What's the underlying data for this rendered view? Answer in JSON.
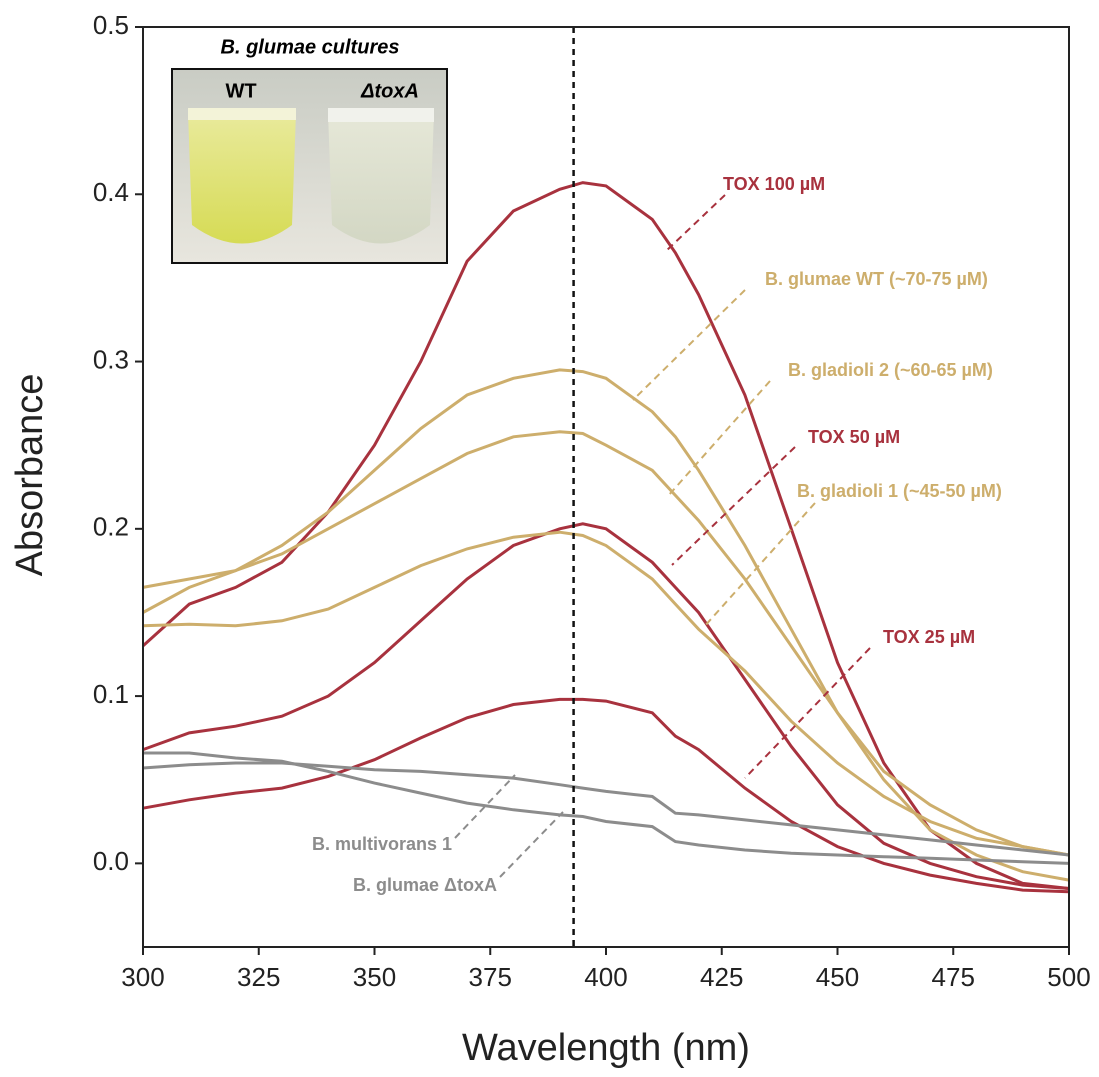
{
  "chart_data": {
    "type": "line",
    "inset": {
      "title": "B. glumae cultures",
      "labels": [
        "WT",
        "ΔtoxA"
      ]
    },
    "xlabel": "Wavelength (nm)",
    "ylabel": "Absorbance",
    "x": [
      300,
      310,
      320,
      330,
      340,
      350,
      360,
      370,
      380,
      390,
      395,
      400,
      410,
      415,
      420,
      430,
      440,
      450,
      460,
      470,
      480,
      490,
      500
    ],
    "series": [
      {
        "name": "TOX 100 µM",
        "color": "#a8323e",
        "values": [
          0.13,
          0.155,
          0.165,
          0.18,
          0.21,
          0.25,
          0.3,
          0.36,
          0.39,
          0.403,
          0.407,
          0.405,
          0.385,
          0.365,
          0.34,
          0.28,
          0.2,
          0.12,
          0.06,
          0.02,
          0.0,
          -0.012,
          -0.015
        ]
      },
      {
        "name": "B. glumae WT (~70-75 µM)",
        "color": "#cdae6c",
        "values": [
          0.15,
          0.165,
          0.175,
          0.19,
          0.21,
          0.235,
          0.26,
          0.28,
          0.29,
          0.295,
          0.294,
          0.29,
          0.27,
          0.255,
          0.235,
          0.19,
          0.14,
          0.09,
          0.05,
          0.02,
          0.005,
          -0.005,
          -0.01
        ]
      },
      {
        "name": "B. gladioli 2 (~60-65 µM)",
        "color": "#cdae6c",
        "values": [
          0.165,
          0.17,
          0.175,
          0.185,
          0.2,
          0.215,
          0.23,
          0.245,
          0.255,
          0.258,
          0.257,
          0.25,
          0.235,
          0.22,
          0.205,
          0.17,
          0.13,
          0.09,
          0.055,
          0.035,
          0.02,
          0.01,
          0.005
        ]
      },
      {
        "name": "TOX 50 µM",
        "color": "#a8323e",
        "values": [
          0.068,
          0.078,
          0.082,
          0.088,
          0.1,
          0.12,
          0.145,
          0.17,
          0.19,
          0.2,
          0.203,
          0.2,
          0.18,
          0.165,
          0.15,
          0.11,
          0.07,
          0.035,
          0.012,
          0.0,
          -0.008,
          -0.013,
          -0.015
        ]
      },
      {
        "name": "B. gladioli 1 (~45-50 µM)",
        "color": "#cdae6c",
        "values": [
          0.142,
          0.143,
          0.142,
          0.145,
          0.152,
          0.165,
          0.178,
          0.188,
          0.195,
          0.198,
          0.196,
          0.19,
          0.17,
          0.155,
          0.14,
          0.115,
          0.085,
          0.06,
          0.04,
          0.025,
          0.015,
          0.01,
          0.005
        ]
      },
      {
        "name": "TOX 25 µM",
        "color": "#a8323e",
        "values": [
          0.033,
          0.038,
          0.042,
          0.045,
          0.052,
          0.062,
          0.075,
          0.087,
          0.095,
          0.098,
          0.098,
          0.097,
          0.09,
          0.076,
          0.068,
          0.045,
          0.025,
          0.01,
          0.0,
          -0.007,
          -0.012,
          -0.016,
          -0.017
        ]
      },
      {
        "name": "B. multivorans 1",
        "color": "#8c8c8c",
        "values": [
          0.057,
          0.059,
          0.06,
          0.06,
          0.058,
          0.056,
          0.055,
          0.053,
          0.051,
          0.047,
          0.045,
          0.043,
          0.04,
          0.03,
          0.029,
          0.026,
          0.023,
          0.02,
          0.017,
          0.014,
          0.011,
          0.008,
          0.005
        ]
      },
      {
        "name": "B. glumae ΔtoxA",
        "color": "#8c8c8c",
        "values": [
          0.066,
          0.066,
          0.063,
          0.061,
          0.055,
          0.048,
          0.042,
          0.036,
          0.032,
          0.029,
          0.028,
          0.025,
          0.022,
          0.013,
          0.011,
          0.008,
          0.006,
          0.005,
          0.004,
          0.003,
          0.002,
          0.001,
          0.0
        ]
      }
    ],
    "vline": 393,
    "xlim": [
      300,
      500
    ],
    "xticks": [
      300,
      325,
      350,
      375,
      400,
      425,
      450,
      475,
      500
    ],
    "ylim": [
      -0.05,
      0.5
    ],
    "yticks": [
      {
        "value": 0,
        "label": "0.0"
      },
      0.1,
      0.2,
      0.3,
      0.4,
      0.5
    ],
    "grid": false
  }
}
